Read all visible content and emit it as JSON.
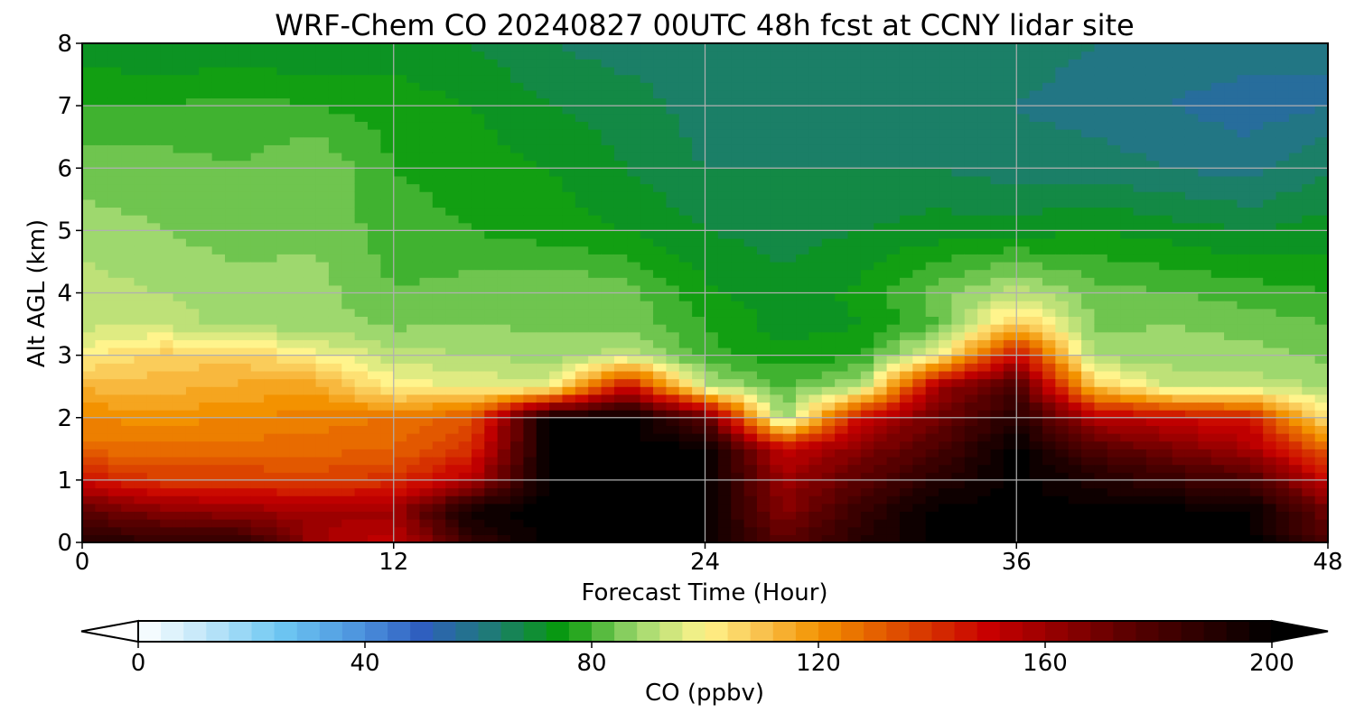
{
  "chart_data": {
    "type": "heatmap",
    "title": "WRF-Chem CO  20240827 00UTC 48h fcst at CCNY lidar site",
    "xlabel": "Forecast Time (Hour)",
    "ylabel": "Alt AGL (km)",
    "x_ticks": [
      "0",
      "12",
      "24",
      "36",
      "48"
    ],
    "y_ticks": [
      "0",
      "1",
      "2",
      "3",
      "4",
      "5",
      "6",
      "7",
      "8"
    ],
    "xlim": [
      0,
      48
    ],
    "ylim": [
      0,
      8
    ],
    "grid": true,
    "colorbar": {
      "label": "CO  (ppbv)",
      "ticks": [
        "0",
        "40",
        "80",
        "120",
        "160",
        "200"
      ],
      "range": [
        0,
        200
      ],
      "extend": "both",
      "orientation": "horizontal",
      "placement": "bottom",
      "stops": [
        {
          "value": 0,
          "color": "#ffffff"
        },
        {
          "value": 12,
          "color": "#bfe6f9"
        },
        {
          "value": 25,
          "color": "#6ec8f2"
        },
        {
          "value": 40,
          "color": "#4a8fdc"
        },
        {
          "value": 50,
          "color": "#2f5fbf"
        },
        {
          "value": 62,
          "color": "#1f7a78"
        },
        {
          "value": 75,
          "color": "#069a0a"
        },
        {
          "value": 88,
          "color": "#9ed86e"
        },
        {
          "value": 100,
          "color": "#fff48c"
        },
        {
          "value": 110,
          "color": "#f9c24e"
        },
        {
          "value": 120,
          "color": "#f39200"
        },
        {
          "value": 150,
          "color": "#c80000"
        },
        {
          "value": 175,
          "color": "#5a0000"
        },
        {
          "value": 200,
          "color": "#000000"
        }
      ]
    },
    "x_hours": [
      0,
      3,
      6,
      9,
      12,
      15,
      18,
      21,
      24,
      27,
      30,
      33,
      36,
      39,
      42,
      45,
      48
    ],
    "altitude_km": [
      0,
      0.5,
      1,
      1.5,
      2,
      2.5,
      3,
      3.5,
      4,
      5,
      6,
      7,
      8
    ],
    "co_ppbv": [
      [
        190,
        188,
        188,
        160,
        150,
        185,
        200,
        200,
        200,
        175,
        190,
        200,
        200,
        200,
        200,
        200,
        178
      ],
      [
        175,
        165,
        162,
        158,
        160,
        198,
        200,
        200,
        200,
        165,
        185,
        200,
        200,
        200,
        200,
        200,
        170
      ],
      [
        148,
        138,
        138,
        137,
        140,
        155,
        200,
        200,
        200,
        160,
        175,
        190,
        200,
        192,
        185,
        180,
        150
      ],
      [
        128,
        128,
        128,
        128,
        130,
        140,
        200,
        200,
        200,
        150,
        165,
        180,
        200,
        178,
        168,
        158,
        130
      ],
      [
        122,
        120,
        122,
        124,
        126,
        132,
        200,
        200,
        175,
        85,
        150,
        170,
        190,
        155,
        150,
        145,
        100
      ],
      [
        113,
        112,
        115,
        116,
        100,
        98,
        95,
        150,
        92,
        82,
        90,
        160,
        180,
        110,
        92,
        92,
        90
      ],
      [
        100,
        108,
        108,
        100,
        92,
        90,
        88,
        92,
        80,
        75,
        78,
        100,
        150,
        88,
        88,
        88,
        85
      ],
      [
        93,
        93,
        88,
        88,
        85,
        86,
        85,
        85,
        78,
        72,
        74,
        82,
        110,
        85,
        86,
        84,
        82
      ],
      [
        92,
        90,
        88,
        88,
        82,
        84,
        86,
        84,
        75,
        72,
        75,
        84,
        92,
        84,
        82,
        80,
        78
      ],
      [
        88,
        86,
        84,
        85,
        80,
        78,
        76,
        74,
        70,
        68,
        70,
        72,
        72,
        74,
        72,
        70,
        72
      ],
      [
        84,
        84,
        82,
        86,
        78,
        76,
        74,
        70,
        66,
        66,
        66,
        66,
        64,
        64,
        62,
        60,
        66
      ],
      [
        78,
        78,
        80,
        78,
        76,
        74,
        70,
        68,
        64,
        64,
        64,
        64,
        62,
        60,
        58,
        56,
        58
      ],
      [
        72,
        70,
        70,
        70,
        72,
        70,
        66,
        64,
        64,
        64,
        64,
        66,
        64,
        62,
        60,
        60,
        58
      ]
    ]
  }
}
